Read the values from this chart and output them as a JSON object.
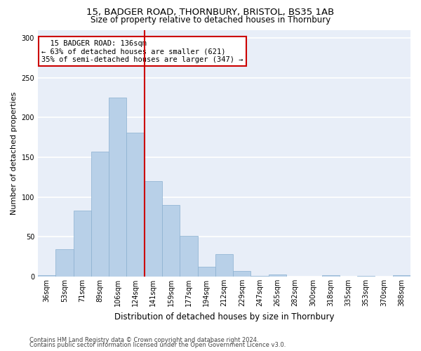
{
  "title1": "15, BADGER ROAD, THORNBURY, BRISTOL, BS35 1AB",
  "title2": "Size of property relative to detached houses in Thornbury",
  "xlabel": "Distribution of detached houses by size in Thornbury",
  "ylabel": "Number of detached properties",
  "footnote1": "Contains HM Land Registry data © Crown copyright and database right 2024.",
  "footnote2": "Contains public sector information licensed under the Open Government Licence v3.0.",
  "annotation_line1": "  15 BADGER ROAD: 136sqm  ",
  "annotation_line2": "← 63% of detached houses are smaller (621)",
  "annotation_line3": "35% of semi-detached houses are larger (347) →",
  "bar_categories": [
    "36sqm",
    "53sqm",
    "71sqm",
    "89sqm",
    "106sqm",
    "124sqm",
    "141sqm",
    "159sqm",
    "177sqm",
    "194sqm",
    "212sqm",
    "229sqm",
    "247sqm",
    "265sqm",
    "282sqm",
    "300sqm",
    "318sqm",
    "335sqm",
    "353sqm",
    "370sqm",
    "388sqm"
  ],
  "bar_heights": [
    2,
    34,
    83,
    157,
    225,
    181,
    120,
    90,
    51,
    12,
    28,
    7,
    1,
    3,
    0,
    0,
    2,
    0,
    1,
    0,
    2
  ],
  "bar_color": "#b8d0e8",
  "bar_edge_color": "#8ab0d0",
  "vline_color": "#cc0000",
  "vline_index": 5.5,
  "ylim": [
    0,
    310
  ],
  "yticks": [
    0,
    50,
    100,
    150,
    200,
    250,
    300
  ],
  "annotation_box_facecolor": "white",
  "annotation_box_edgecolor": "#cc0000",
  "bg_color": "#e8eef8",
  "grid_color": "white",
  "title1_fontsize": 9.5,
  "title2_fontsize": 8.5,
  "ylabel_fontsize": 8,
  "xlabel_fontsize": 8.5,
  "tick_fontsize": 7,
  "footnote_fontsize": 6,
  "annot_fontsize": 7.5
}
